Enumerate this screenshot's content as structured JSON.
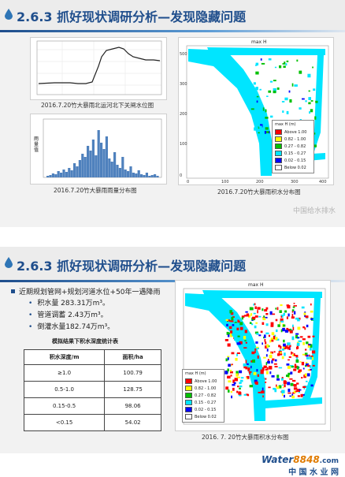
{
  "slide1": {
    "title": "2.6.3 抓好现状调研分析—发现隐藏问题",
    "cap1": "2016.7.20竹大暴雨北运河北下关闸水位图",
    "cap2": "2016.7.20竹大暴雨雨量分布图",
    "cap3": "2016.7.20竹大暴雨积水分布图",
    "map_title": "max H",
    "rain_ylabel": "雨量值",
    "legend_title": "max H (m)",
    "legend": [
      "Above 1.00",
      "0.82 - 1.00",
      "0.27 - 0.82",
      "0.15 - 0.27",
      "0.02 - 0.15",
      "Below 0.02"
    ],
    "legend_colors": [
      "#ff0000",
      "#ffff00",
      "#00c000",
      "#00e5ff",
      "#0000ff",
      "#ffffff"
    ],
    "map_yticks": [
      "500",
      "300",
      "200",
      "100",
      "0"
    ],
    "map_xticks": [
      "0",
      "100",
      "200",
      "300",
      "400"
    ],
    "watermark": "中国给水排水"
  },
  "slide2": {
    "title": "2.6.3 抓好现状调研分析—发现隐藏问题",
    "bullet_main": "近期规划管网+规划河道水位+50年一遇降雨",
    "sub1": "积水量 283.31万m³。",
    "sub2": "管道调蓄 2.43万m³。",
    "sub3": "倒灌水量182.74万m³。",
    "table_caption": "模拟结果下积水深度统计表",
    "table_headers": [
      "积水深度/m",
      "面积/ha"
    ],
    "table_rows": [
      [
        "≥1.0",
        "100.79"
      ],
      [
        "0.5-1.0",
        "128.75"
      ],
      [
        "0.15-0.5",
        "98.06"
      ],
      [
        "<0.15",
        "54.02"
      ]
    ],
    "map_title": "max H",
    "legend_title": "max H (m)",
    "legend": [
      "Above 1.00",
      "0.82 - 1.00",
      "0.27 - 0.82",
      "0.15 - 0.27",
      "0.02 - 0.15",
      "Below 0.02"
    ],
    "caption": "2016. 7. 20竹大暴雨积水分布图"
  },
  "footer": {
    "logo_word": "Water",
    "logo_num": "8848",
    "logo_com": ".com",
    "logo_cn": "中 国 水 业 网"
  }
}
